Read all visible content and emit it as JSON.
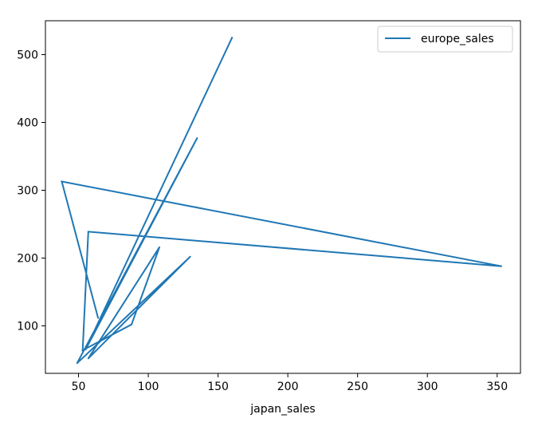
{
  "chart_data": {
    "type": "line",
    "title": "",
    "xlabel": "japan_sales",
    "ylabel": "",
    "xlim": [
      26.3,
      366.7
    ],
    "ylim": [
      30,
      550
    ],
    "xticks": [
      50,
      100,
      150,
      200,
      250,
      300,
      350
    ],
    "yticks": [
      100,
      200,
      300,
      400,
      500
    ],
    "grid": false,
    "legend_position": "top-right",
    "series": [
      {
        "name": "europe_sales",
        "color": "#1f77b4",
        "points": [
          {
            "x": 160,
            "y": 525
          },
          {
            "x": 55,
            "y": 65
          },
          {
            "x": 135,
            "y": 377
          },
          {
            "x": 49,
            "y": 45
          },
          {
            "x": 130,
            "y": 202
          },
          {
            "x": 57,
            "y": 52
          },
          {
            "x": 108,
            "y": 216
          },
          {
            "x": 88,
            "y": 102
          },
          {
            "x": 53,
            "y": 64
          },
          {
            "x": 57,
            "y": 239
          },
          {
            "x": 353,
            "y": 188
          },
          {
            "x": 38,
            "y": 313
          },
          {
            "x": 64,
            "y": 112
          }
        ]
      }
    ]
  }
}
